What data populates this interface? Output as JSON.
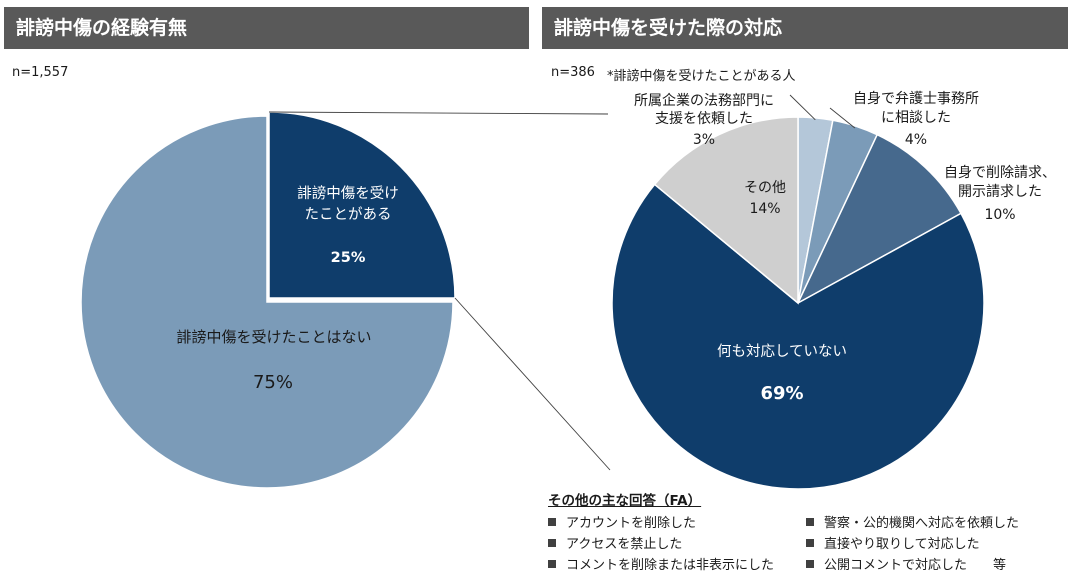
{
  "left_panel": {
    "header": "誹謗中傷の経験有無",
    "sample": "n=1,557"
  },
  "right_panel": {
    "header": "誹謗中傷を受けた際の対応",
    "sample": "n=386",
    "sample_note": "*誹謗中傷を受けたことがある人"
  },
  "chart_data": [
    {
      "type": "pie",
      "title": "誹謗中傷の経験有無",
      "slices": [
        {
          "label_lines": [
            "誹謗中傷を受け",
            "たことがある"
          ],
          "value_label": "25%",
          "value": 25,
          "color": "#0f3d6b",
          "exploded": true
        },
        {
          "label_lines": [
            "誹謗中傷を受けたことはない"
          ],
          "value_label": "75%",
          "value": 75,
          "color": "#7b9bb8"
        }
      ]
    },
    {
      "type": "pie",
      "title": "誹謗中傷を受けた際の対応",
      "slices": [
        {
          "label_lines": [
            "所属企業の法務部門に",
            "支援を依頼した"
          ],
          "value_label": "3%",
          "value": 3,
          "color": "#b4c7d9"
        },
        {
          "label_lines": [
            "自身で弁護士事務所",
            "に相談した"
          ],
          "value_label": "4%",
          "value": 4,
          "color": "#7b9bb8"
        },
        {
          "label_lines": [
            "自身で削除請求、",
            "開示請求した"
          ],
          "value_label": "10%",
          "value": 10,
          "color": "#46698d"
        },
        {
          "label_lines": [
            "何も対応していない"
          ],
          "value_label": "69%",
          "value": 69,
          "color": "#0f3d6b"
        },
        {
          "label_lines": [
            "その他"
          ],
          "value_label": "14%",
          "value": 14,
          "color": "#cfcfcf"
        }
      ]
    }
  ],
  "other_answers": {
    "title": "その他の主な回答（FA）",
    "left_items": [
      "アカウントを削除した",
      "アクセスを禁止した",
      "コメントを削除または非表示にした"
    ],
    "right_items": [
      "警察・公的機関へ対応を依頼した",
      "直接やり取りして対応した",
      "公開コメントで対応した　　等"
    ]
  }
}
